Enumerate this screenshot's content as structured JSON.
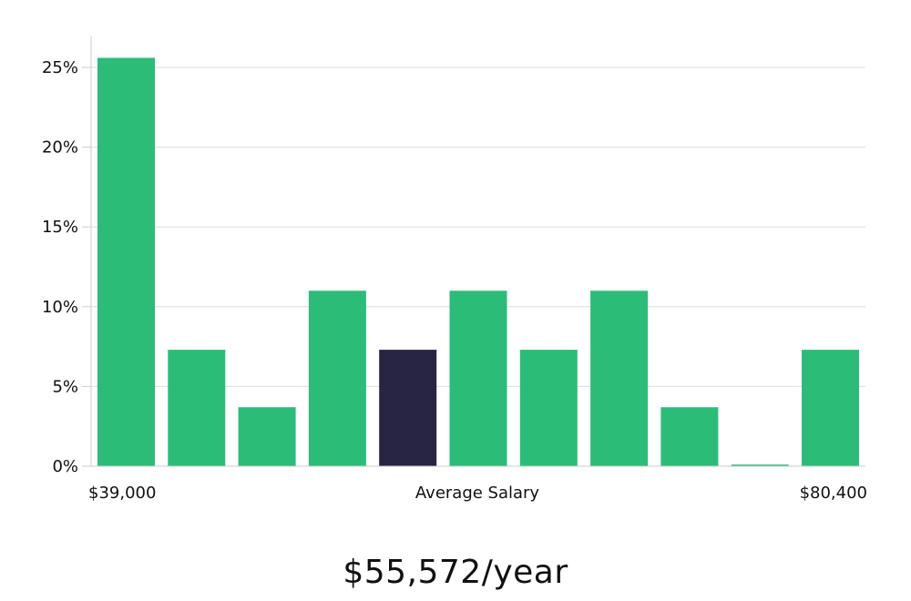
{
  "chart_data": {
    "type": "bar",
    "x_start_label": "$39,000",
    "x_mid_label": "Average Salary",
    "x_end_label": "$80,400",
    "values": [
      25.6,
      7.3,
      3.7,
      11.0,
      7.3,
      11.0,
      7.3,
      11.0,
      3.7,
      0.1,
      7.3
    ],
    "highlight_index": 4,
    "y_ticks": [
      "0%",
      "5%",
      "10%",
      "15%",
      "20%",
      "25%"
    ],
    "y_tick_values": [
      0,
      5,
      10,
      15,
      20,
      25
    ],
    "ylim": [
      0,
      27
    ],
    "grid": true,
    "colors": {
      "bar": "#2bbd77",
      "highlight": "#282443",
      "grid": "#dddddd",
      "axis": "#cccccc"
    }
  },
  "summary": {
    "average_salary": "$55,572/year"
  }
}
